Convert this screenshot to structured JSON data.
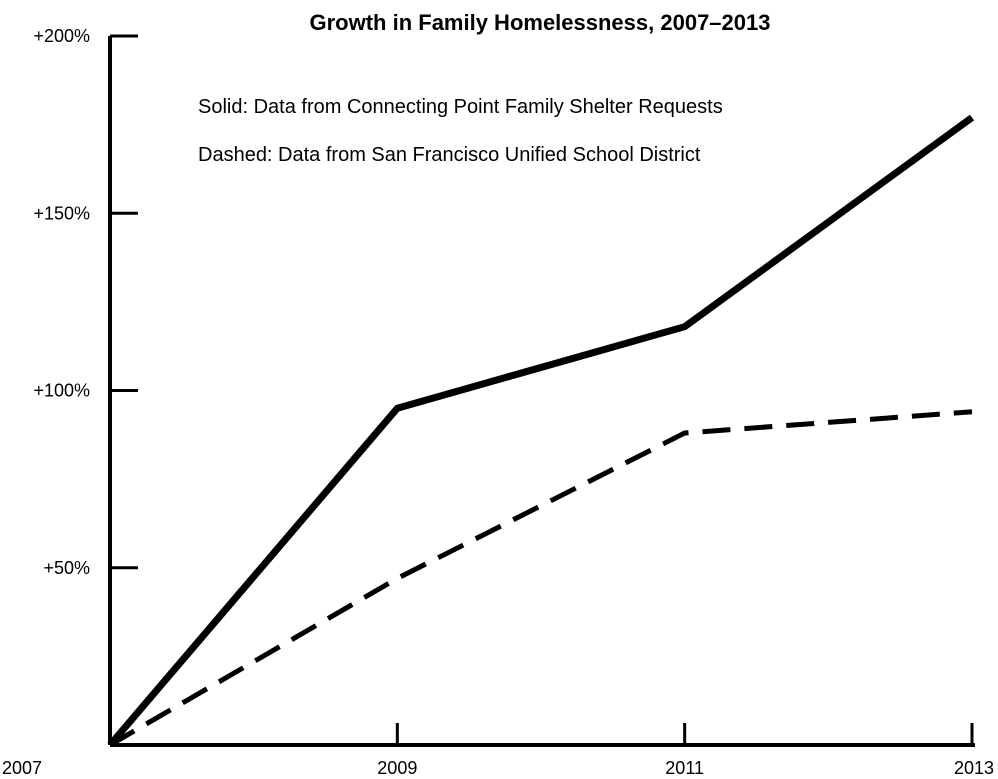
{
  "chart_data": {
    "type": "line",
    "title": "Growth in Family Homelessness, 2007–2013",
    "xlabel": "",
    "ylabel": "",
    "x": [
      "2007",
      "2009",
      "2011",
      "2013"
    ],
    "ylim": [
      0,
      200
    ],
    "y_ticks": [
      50,
      100,
      150,
      200
    ],
    "y_tick_labels": [
      "+50%",
      "+100%",
      "+150%",
      "+200%"
    ],
    "x_tick_labels": [
      "2007",
      "2009",
      "2011",
      "2013"
    ],
    "grid": false,
    "legend": "top-left",
    "annotations": [
      "Solid: Data from Connecting Point Family Shelter Requests",
      "Dashed: Data from San Francisco Unified School District"
    ],
    "series": [
      {
        "style": "solid",
        "values": [
          0,
          95,
          118,
          177
        ]
      },
      {
        "style": "dashed",
        "values": [
          0,
          47,
          88,
          94
        ]
      }
    ],
    "colors": {
      "line": "#000000",
      "axis": "#000000",
      "background": "#ffffff"
    }
  }
}
